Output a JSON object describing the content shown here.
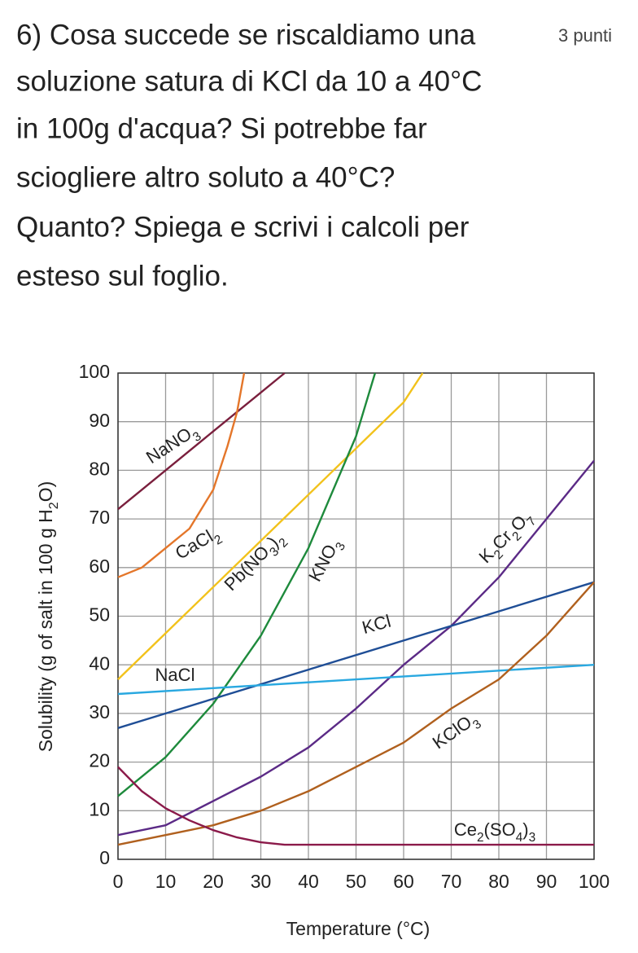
{
  "question": {
    "lines": [
      "6) Cosa succede se riscaldiamo una",
      "soluzione satura di KCl da 10 a 40°C",
      "in 100g d'acqua? Si potrebbe far",
      "sciogliere altro soluto a 40°C?",
      "Quanto?  Spiega e scrivi i calcoli per",
      "esteso sul foglio."
    ],
    "points": "3 punti"
  },
  "chart_data": {
    "type": "line",
    "xlabel": "Temperature (°C)",
    "ylabel": "Solubility (g of salt in 100 g H2O)",
    "xlim": [
      0,
      100
    ],
    "ylim": [
      0,
      100
    ],
    "xticks": [
      0,
      10,
      20,
      30,
      40,
      50,
      60,
      70,
      80,
      90,
      100
    ],
    "yticks": [
      0,
      10,
      20,
      30,
      40,
      50,
      60,
      70,
      80,
      90,
      100
    ],
    "grid": true,
    "series": [
      {
        "name": "NaNO3",
        "color": "#7a1f3d",
        "x": [
          0,
          10,
          20,
          30,
          35
        ],
        "values": [
          72,
          80,
          88,
          96,
          100
        ]
      },
      {
        "name": "CaCl2",
        "color": "#e4762a",
        "x": [
          0,
          5,
          10,
          15,
          20,
          23,
          25,
          26.5
        ],
        "values": [
          58,
          60,
          64,
          68,
          76,
          85,
          92,
          100
        ]
      },
      {
        "name": "Pb(NO3)2",
        "color": "#f2c21b",
        "x": [
          0,
          20,
          40,
          60,
          64
        ],
        "values": [
          37,
          56,
          75,
          94,
          100
        ]
      },
      {
        "name": "KNO3",
        "color": "#1e8a3c",
        "x": [
          0,
          10,
          20,
          30,
          40,
          50,
          54
        ],
        "values": [
          13,
          21,
          32,
          46,
          64,
          87,
          100
        ]
      },
      {
        "name": "K2Cr2O7",
        "color": "#5b2a86",
        "x": [
          0,
          10,
          20,
          30,
          40,
          50,
          60,
          70,
          80,
          90,
          100
        ],
        "values": [
          5,
          7,
          12,
          17,
          23,
          31,
          40,
          48,
          58,
          70,
          82
        ]
      },
      {
        "name": "KCl",
        "color": "#1f4e96",
        "x": [
          0,
          100
        ],
        "values": [
          27,
          57
        ]
      },
      {
        "name": "NaCl",
        "color": "#29a8e0",
        "x": [
          0,
          100
        ],
        "values": [
          34,
          40
        ]
      },
      {
        "name": "KClO3",
        "color": "#b0601e",
        "x": [
          0,
          10,
          20,
          30,
          40,
          50,
          60,
          70,
          80,
          90,
          100
        ],
        "values": [
          3,
          5,
          7,
          10,
          14,
          19,
          24,
          31,
          37,
          46,
          57
        ]
      },
      {
        "name": "Ce2(SO4)3",
        "color": "#8b1a4a",
        "x": [
          0,
          5,
          10,
          15,
          20,
          25,
          30,
          35,
          100
        ],
        "values": [
          19,
          14,
          10.5,
          8,
          6,
          4.5,
          3.5,
          3,
          3
        ]
      }
    ]
  }
}
